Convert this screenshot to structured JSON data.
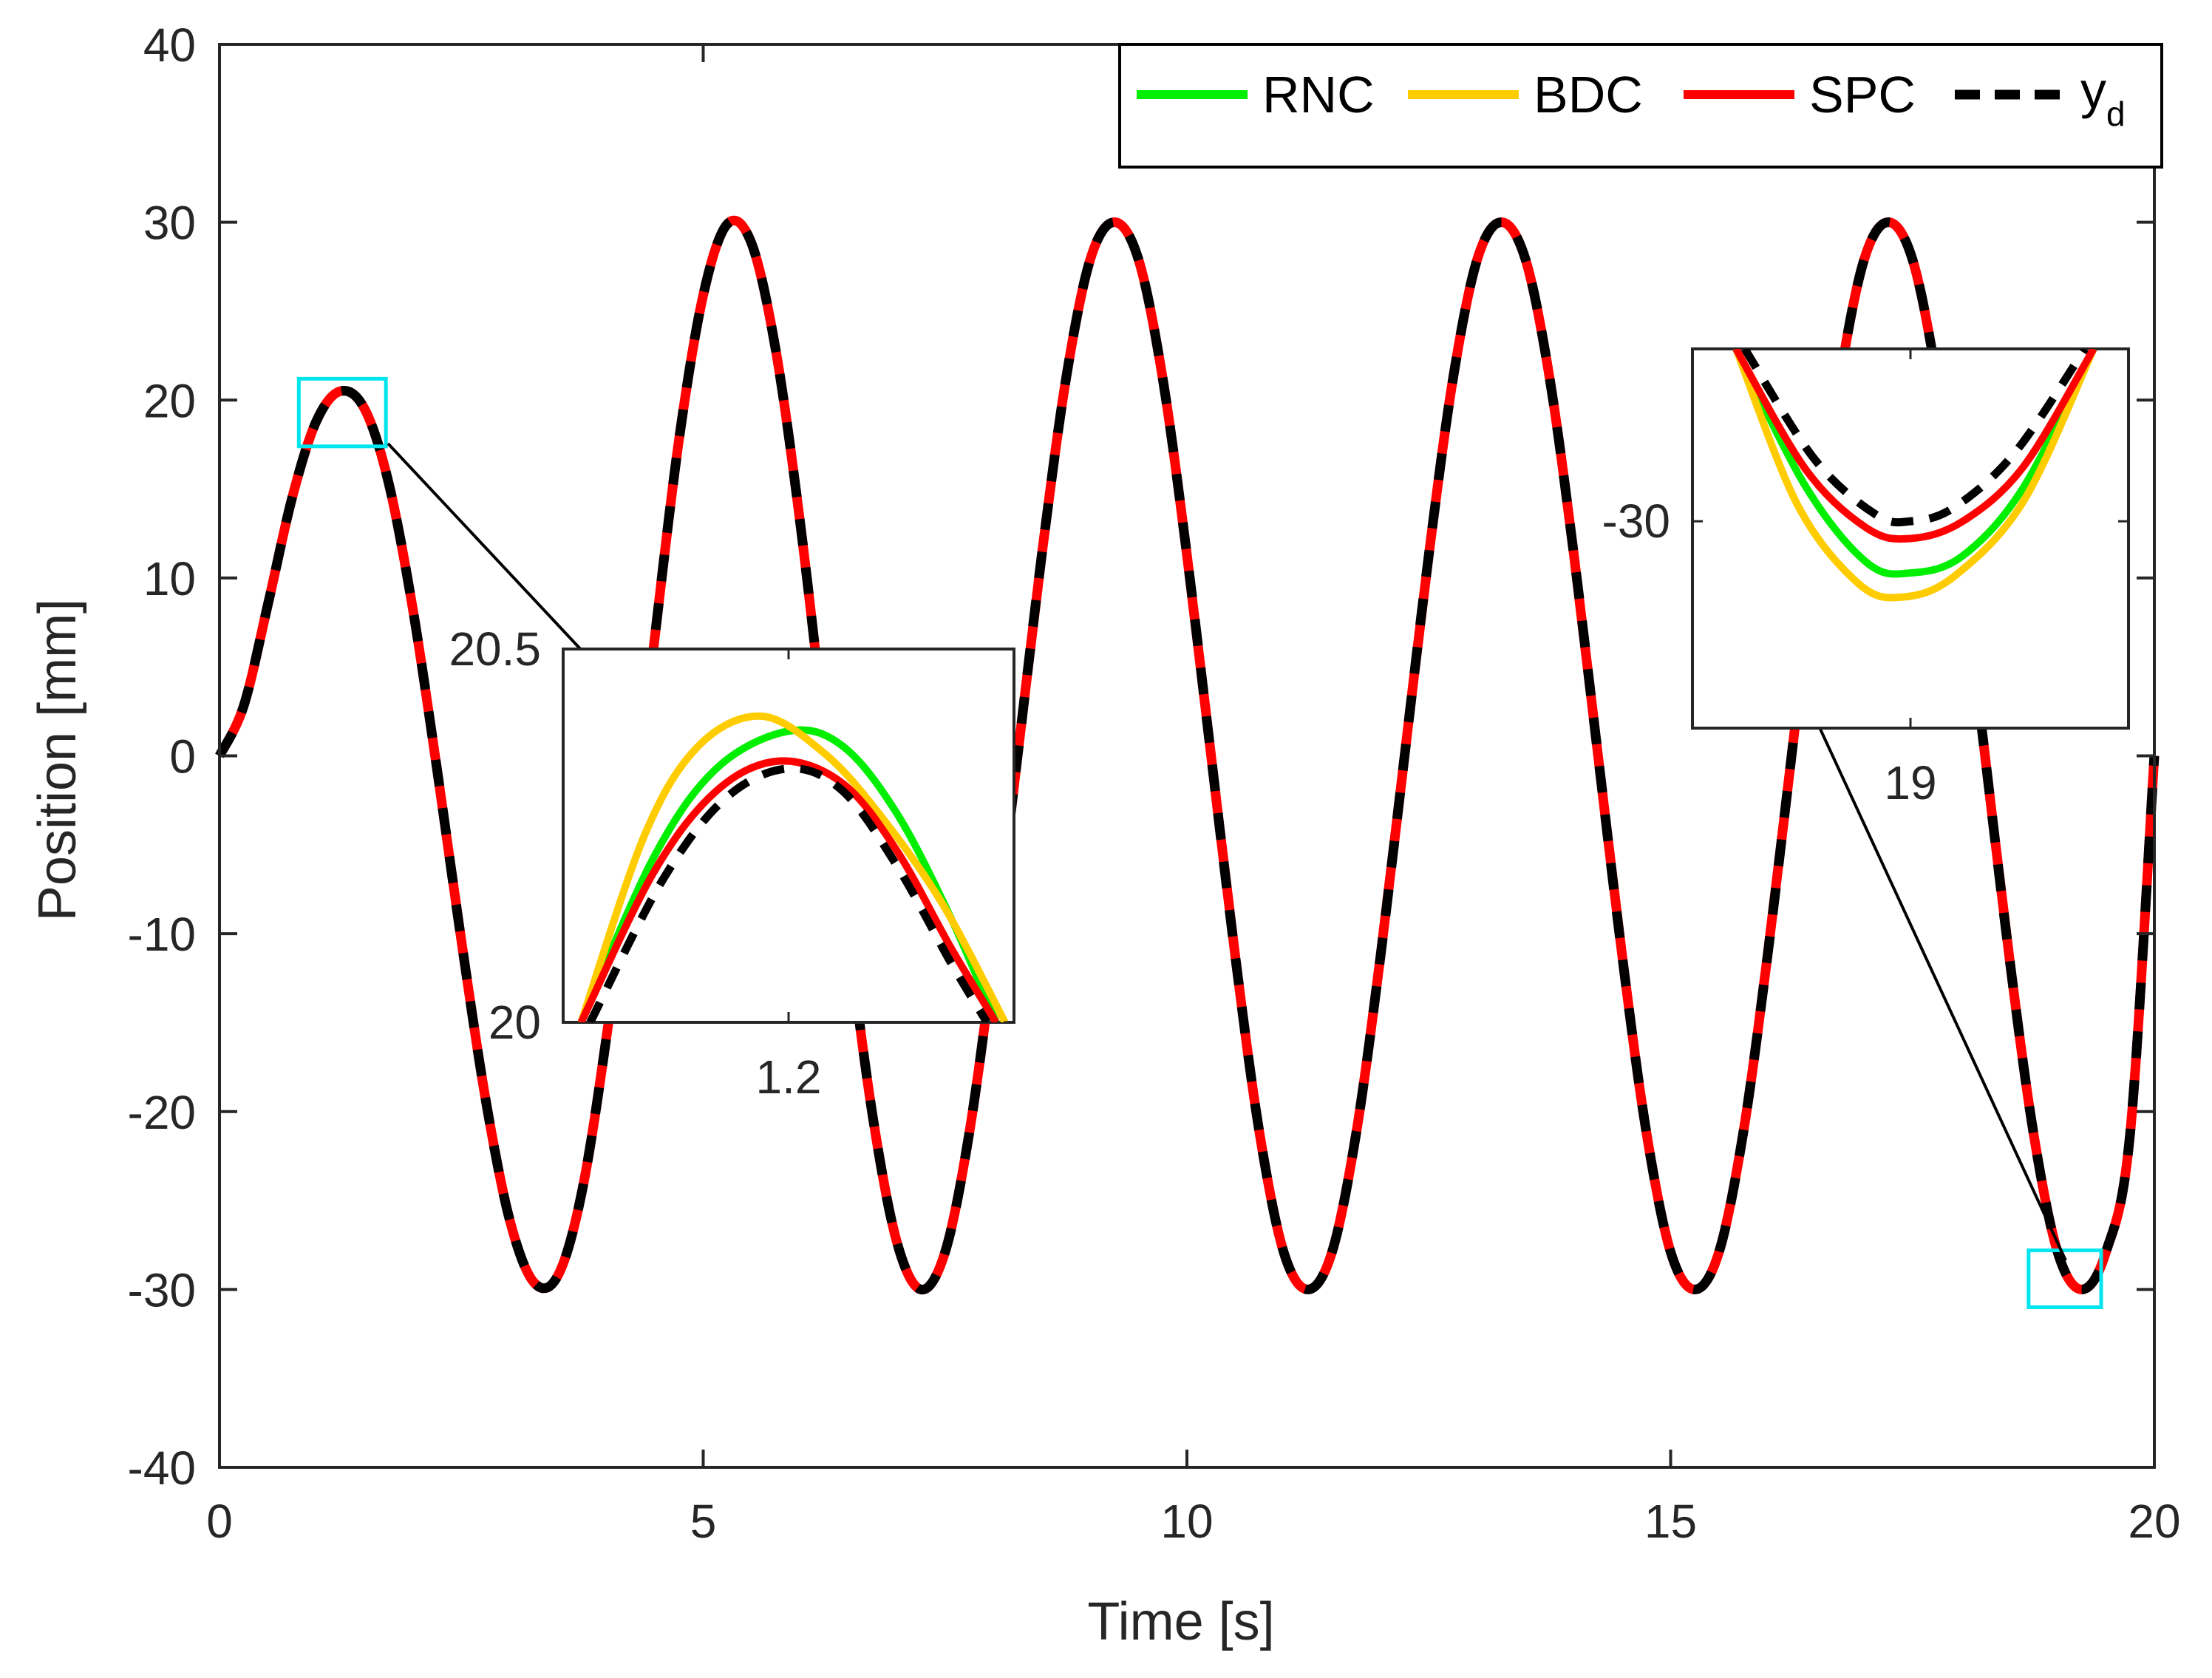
{
  "chart_data": {
    "type": "line",
    "title": "",
    "xlabel": "Time [s]",
    "ylabel": "Position [mm]",
    "xlim": [
      0,
      20
    ],
    "ylim": [
      -40,
      40
    ],
    "xticks": [
      0,
      5,
      10,
      15,
      20
    ],
    "yticks": [
      -40,
      -30,
      -20,
      -10,
      0,
      10,
      20,
      30,
      40
    ],
    "xtick_labels": [
      "0",
      "5",
      "10",
      "15",
      "20"
    ],
    "ytick_labels": [
      "-40",
      "-30",
      "-20",
      "-10",
      "0",
      "10",
      "20",
      "30",
      "40"
    ],
    "grid": false,
    "legend": {
      "position": "top-right",
      "entries": [
        {
          "name": "RNC",
          "color": "#00ee00",
          "style": "solid"
        },
        {
          "name": "BDC",
          "color": "#ffcc00",
          "style": "solid"
        },
        {
          "name": "SPC",
          "color": "#ff0000",
          "style": "solid"
        },
        {
          "name": "y",
          "subscript": "d",
          "color": "#000000",
          "style": "dashed"
        }
      ]
    },
    "series": [
      {
        "name": "y_d",
        "x": [
          0,
          0.25,
          0.5,
          0.75,
          1.0,
          1.25,
          1.5,
          1.75,
          2.0,
          2.25,
          2.5,
          2.75,
          3.0,
          3.25,
          3.5,
          3.75,
          4.0,
          4.25,
          4.5,
          4.75,
          5.0,
          5.25,
          5.5,
          5.75,
          6.0,
          6.25,
          6.5,
          6.75,
          7.0,
          7.25,
          7.5,
          7.75,
          8.0,
          8.25,
          8.5,
          8.75,
          9.0,
          9.25,
          9.5,
          9.75,
          10.0,
          10.25,
          10.5,
          10.75,
          11.0,
          11.25,
          11.5,
          11.75,
          12.0,
          12.25,
          12.5,
          12.75,
          13.0,
          13.25,
          13.5,
          13.75,
          14.0,
          14.25,
          14.5,
          14.75,
          15.0,
          15.25,
          15.5,
          15.75,
          16.0,
          16.25,
          16.5,
          16.75,
          17.0,
          17.25,
          17.5,
          17.75,
          18.0,
          18.25,
          18.5,
          18.75,
          19.0,
          19.25,
          19.5,
          19.75,
          20.0
        ],
        "values": [
          0,
          2.8,
          8.5,
          14.5,
          18.8,
          20.5,
          19.5,
          15.3,
          8.2,
          -0.8,
          -10.4,
          -19.3,
          -26.1,
          -29.6,
          -29.2,
          -24.4,
          -15.8,
          -5.2,
          6.7,
          17.8,
          25.9,
          29.9,
          28.8,
          22.8,
          13.2,
          1.6,
          -10.0,
          -20.2,
          -27.3,
          -30.0,
          -27.9,
          -21.2,
          -11.3,
          0.0,
          11.3,
          21.2,
          27.9,
          30.0,
          27.9,
          21.2,
          11.3,
          0.0,
          -11.3,
          -21.2,
          -27.9,
          -30.0,
          -27.9,
          -21.2,
          -11.3,
          0.0,
          11.3,
          21.2,
          27.9,
          30.0,
          27.9,
          21.2,
          11.3,
          0.0,
          -11.3,
          -21.2,
          -27.9,
          -30.0,
          -27.9,
          -21.2,
          -11.3,
          0.0,
          11.3,
          21.2,
          27.9,
          30.0,
          27.9,
          21.2,
          11.3,
          0.0,
          -11.3,
          -21.2,
          -27.9,
          -30.0,
          -27.9,
          -21.2,
          0.0
        ]
      }
    ],
    "insets": [
      {
        "name": "inset-peak",
        "xlim": [
          0.95,
          1.45
        ],
        "ylim": [
          20,
          20.5
        ],
        "xticks": [
          1.2
        ],
        "xtick_labels": [
          "1.2"
        ],
        "ytick_labels": [
          "20",
          "20.5"
        ],
        "series": [
          {
            "name": "RNC",
            "x": [
              0.97,
              1.05,
              1.12,
              1.2,
              1.26,
              1.32,
              1.38,
              1.43
            ],
            "values": [
              20.0,
              20.22,
              20.34,
              20.39,
              20.37,
              20.28,
              20.14,
              20.0
            ]
          },
          {
            "name": "BDC",
            "x": [
              0.97,
              1.04,
              1.1,
              1.17,
              1.24,
              1.3,
              1.37,
              1.44
            ],
            "values": [
              20.0,
              20.25,
              20.37,
              20.41,
              20.36,
              20.28,
              20.16,
              20.0
            ]
          },
          {
            "name": "SPC",
            "x": [
              0.97,
              1.05,
              1.12,
              1.19,
              1.26,
              1.32,
              1.38,
              1.43
            ],
            "values": [
              20.0,
              20.2,
              20.31,
              20.35,
              20.32,
              20.23,
              20.1,
              20.0
            ]
          },
          {
            "name": "y_d",
            "x": [
              0.98,
              1.06,
              1.13,
              1.2,
              1.26,
              1.32,
              1.38,
              1.42
            ],
            "values": [
              20.0,
              20.19,
              20.3,
              20.34,
              20.31,
              20.21,
              20.08,
              20.0
            ]
          }
        ]
      },
      {
        "name": "inset-trough",
        "xlim": [
          18.75,
          19.25
        ],
        "ylim": [
          -30.6,
          -29.5
        ],
        "xticks": [
          19
        ],
        "xtick_labels": [
          "19"
        ],
        "ytick_labels": [
          "-30"
        ],
        "series": [
          {
            "name": "RNC",
            "x": [
              18.8,
              18.88,
              18.95,
              19.0,
              19.06,
              19.13,
              19.21
            ],
            "values": [
              -29.5,
              -29.9,
              -30.12,
              -30.15,
              -30.1,
              -29.9,
              -29.5
            ]
          },
          {
            "name": "BDC",
            "x": [
              18.8,
              18.87,
              18.94,
              18.99,
              19.05,
              19.13,
              19.21
            ],
            "values": [
              -29.5,
              -29.95,
              -30.18,
              -30.22,
              -30.16,
              -29.94,
              -29.5
            ]
          },
          {
            "name": "SPC",
            "x": [
              18.8,
              18.88,
              18.95,
              19.0,
              19.06,
              19.13,
              19.21
            ],
            "values": [
              -29.5,
              -29.85,
              -30.02,
              -30.05,
              -30.0,
              -29.84,
              -29.5
            ]
          },
          {
            "name": "y_d",
            "x": [
              18.81,
              18.89,
              18.96,
              19.0,
              19.05,
              19.12,
              19.2
            ],
            "values": [
              -29.5,
              -29.82,
              -29.98,
              -30.0,
              -29.96,
              -29.8,
              -29.5
            ]
          }
        ]
      }
    ]
  }
}
